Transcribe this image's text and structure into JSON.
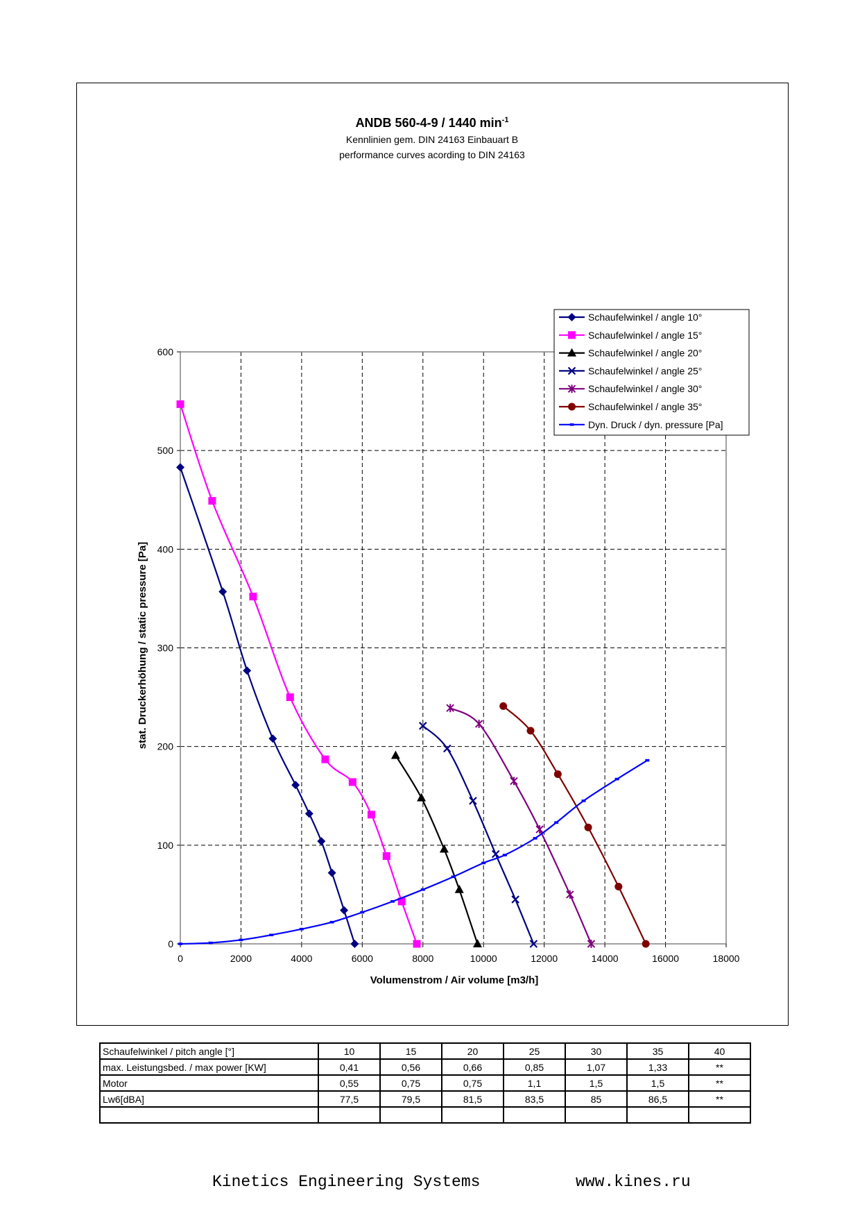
{
  "colors": {
    "angle_10": "#000080",
    "angle_15": "#ff00ff",
    "angle_20": "#000000",
    "angle_25": "#000080",
    "angle_30": "#800080",
    "angle_35": "#800000",
    "dyn_pressure": "#0000ff"
  },
  "chart_data": {
    "type": "line",
    "title": "ANDB 560-4-9 / 1440 min",
    "title_superscript": "-1",
    "subtitle_1": "Kennlinien gem. DIN 24163 Einbauart B",
    "subtitle_2": "performance curves acording to DIN 24163",
    "xlabel": "Volumenstrom / Air volume [m3/h]",
    "ylabel": "stat. Druckerhöhung / static pressure [Pa]",
    "xlim": [
      0,
      18000
    ],
    "ylim": [
      0,
      600
    ],
    "x_ticks": [
      0,
      2000,
      4000,
      6000,
      8000,
      10000,
      12000,
      14000,
      16000,
      18000
    ],
    "y_ticks": [
      0,
      100,
      200,
      300,
      400,
      500,
      600
    ],
    "grid": true,
    "legend_position": "top-right",
    "series": [
      {
        "name": "Schaufelwinkel / angle 10°",
        "marker": "diamond",
        "color_key": "angle_10",
        "x": [
          0,
          1400,
          2200,
          3050,
          3800,
          4250,
          4650,
          5000,
          5400,
          5750
        ],
        "y": [
          483,
          357,
          277,
          208,
          161,
          132,
          104,
          72,
          34,
          0
        ]
      },
      {
        "name": "Schaufelwinkel / angle 15°",
        "marker": "square",
        "color_key": "angle_15",
        "x": [
          0,
          1050,
          2400,
          3620,
          4780,
          5680,
          6300,
          6800,
          7300,
          7800
        ],
        "y": [
          547,
          449,
          352,
          250,
          187,
          164,
          131,
          89,
          43,
          0
        ]
      },
      {
        "name": "Schaufelwinkel / angle 20°",
        "marker": "triangle",
        "color_key": "angle_20",
        "x": [
          7100,
          7950,
          8700,
          9200,
          9800
        ],
        "y": [
          191,
          148,
          96,
          55,
          0
        ]
      },
      {
        "name": "Schaufelwinkel / angle 25°",
        "marker": "x",
        "color_key": "angle_25",
        "x": [
          8000,
          8800,
          9650,
          10400,
          11050,
          11650
        ],
        "y": [
          221,
          198,
          145,
          91,
          45,
          0
        ]
      },
      {
        "name": "Schaufelwinkel / angle 30°",
        "marker": "star",
        "color_key": "angle_30",
        "x": [
          8900,
          9850,
          11000,
          11850,
          12850,
          13550
        ],
        "y": [
          239,
          223,
          165,
          116,
          50,
          0
        ]
      },
      {
        "name": "Schaufelwinkel / angle 35°",
        "marker": "circle",
        "color_key": "angle_35",
        "x": [
          10650,
          11550,
          12450,
          13450,
          14450,
          15350
        ],
        "y": [
          241,
          216,
          172,
          118,
          58,
          0
        ]
      },
      {
        "name": "Dyn. Druck / dyn. pressure [Pa]",
        "marker": "dash",
        "color_key": "dyn_pressure",
        "x": [
          0,
          1000,
          2000,
          3000,
          4000,
          5000,
          6000,
          7000,
          8000,
          9000,
          10000,
          10700,
          11700,
          12400,
          13300,
          14400,
          15400
        ],
        "y": [
          0,
          1,
          4,
          9,
          15,
          22,
          32,
          43,
          55,
          68,
          82,
          90,
          107,
          123,
          145,
          167,
          186
        ]
      }
    ]
  },
  "table": {
    "rows": [
      {
        "label": "Schaufelwinkel / pitch angle [°]",
        "values": [
          "10",
          "15",
          "20",
          "25",
          "30",
          "35",
          "40"
        ]
      },
      {
        "label": "max. Leistungsbed. / max power [KW]",
        "values": [
          "0,41",
          "0,56",
          "0,66",
          "0,85",
          "1,07",
          "1,33",
          "**"
        ]
      },
      {
        "label": "Motor",
        "values": [
          "0,55",
          "0,75",
          "0,75",
          "1,1",
          "1,5",
          "1,5",
          "**"
        ]
      },
      {
        "label": "Lw6[dBA]",
        "values": [
          "77,5",
          "79,5",
          "81,5",
          "83,5",
          "85",
          "86,5",
          "**"
        ]
      },
      {
        "label": "",
        "values": [
          "",
          "",
          "",
          "",
          "",
          "",
          ""
        ]
      }
    ]
  },
  "footer": {
    "company": "Kinetics Engineering Systems",
    "url": "www.kines.ru"
  }
}
